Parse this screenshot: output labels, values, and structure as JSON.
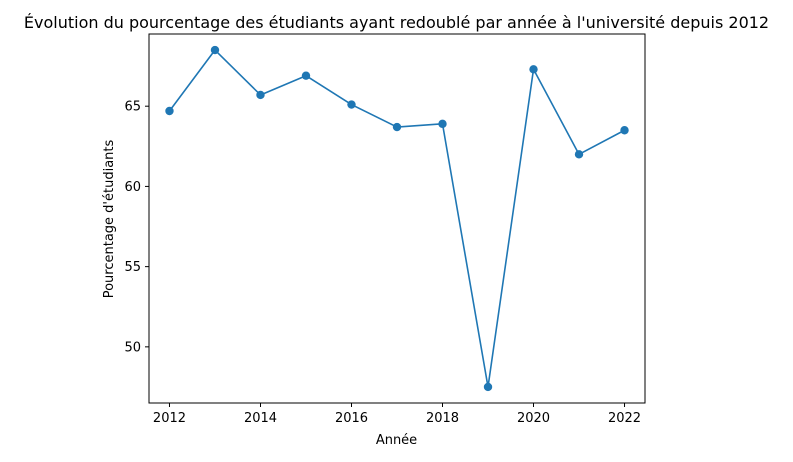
{
  "chart_data": {
    "type": "line",
    "title": "Évolution du pourcentage des étudiants ayant redoublé par année à l'université depuis 2012",
    "xlabel": "Année",
    "ylabel": "Pourcentage d'étudiants",
    "x": [
      2012,
      2013,
      2014,
      2015,
      2016,
      2017,
      2018,
      2019,
      2020,
      2021,
      2022
    ],
    "series": [
      {
        "values": [
          64.7,
          68.5,
          65.7,
          66.9,
          65.1,
          63.7,
          63.9,
          47.5,
          67.3,
          62.0,
          63.5
        ],
        "color": "#1f77b4",
        "marker": "circle"
      }
    ],
    "xlim": [
      2011.55,
      2022.45
    ],
    "ylim": [
      46.5,
      69.5
    ],
    "xticks": [
      2012,
      2014,
      2016,
      2018,
      2020,
      2022
    ],
    "yticks": [
      50,
      55,
      60,
      65
    ],
    "grid": false,
    "legend": "none"
  }
}
